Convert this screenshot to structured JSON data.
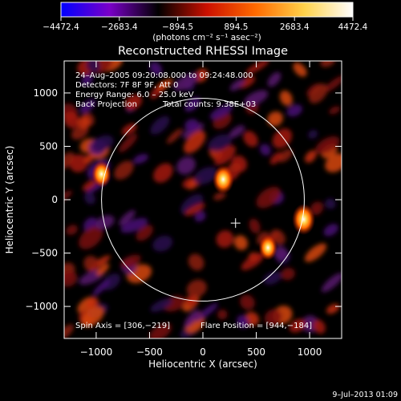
{
  "chart_data": {
    "type": "heatmap",
    "title": "Reconstructed RHESSI Image",
    "colorbar": {
      "ticks": [
        "−4472.4",
        "−2683.4",
        "−894.5",
        "894.5",
        "2683.4",
        "4472.4"
      ],
      "tick_values": [
        -4472.4,
        -2683.4,
        -894.5,
        894.5,
        2683.4,
        4472.4
      ],
      "range": [
        -4472.4,
        4472.4
      ],
      "unit_label": "(photons cm⁻² s⁻¹ asec⁻²)",
      "colormap": [
        "#0000ff",
        "#7a00c8",
        "#000000",
        "#cc1000",
        "#ff6a00",
        "#ffd24a",
        "#ffffff"
      ]
    },
    "xlabel": "Heliocentric X (arcsec)",
    "ylabel": "Heliocentric Y (arcsec)",
    "xlim": [
      -1300,
      1300
    ],
    "ylim": [
      -1300,
      1300
    ],
    "xticks": [
      -1000,
      -500,
      0,
      500,
      1000
    ],
    "yticks": [
      1000,
      500,
      0,
      -500,
      -1000
    ],
    "xtick_labels": [
      "−1000",
      "−500",
      "0",
      "500",
      "1000"
    ],
    "ytick_labels": [
      "1000",
      "500",
      "0",
      "−500",
      "−1000"
    ],
    "info_lines": [
      "24–Aug–2005 09:20:08.000 to 09:24:48.000",
      "Detectors: 7F 8F 9F, Att 0",
      "Energy Range: 6.0 – 25.0 keV"
    ],
    "info_method": "Back Projection",
    "info_counts": "Total counts: 9.38E+03",
    "spin_axis": "Spin Axis = [306,−219]",
    "flare_position": "Flare Position = [944,−184]",
    "solar_limb_radius": 950,
    "crosshair": [
      306,
      -219
    ],
    "sources": [
      {
        "x": 944,
        "y": -184,
        "intensity": 4472
      },
      {
        "x": 190,
        "y": 190,
        "intensity": 3900
      },
      {
        "x": -950,
        "y": 240,
        "intensity": 3300
      },
      {
        "x": 610,
        "y": -450,
        "intensity": 2900
      }
    ],
    "date_stamp": "9–Jul–2013 01:09"
  }
}
